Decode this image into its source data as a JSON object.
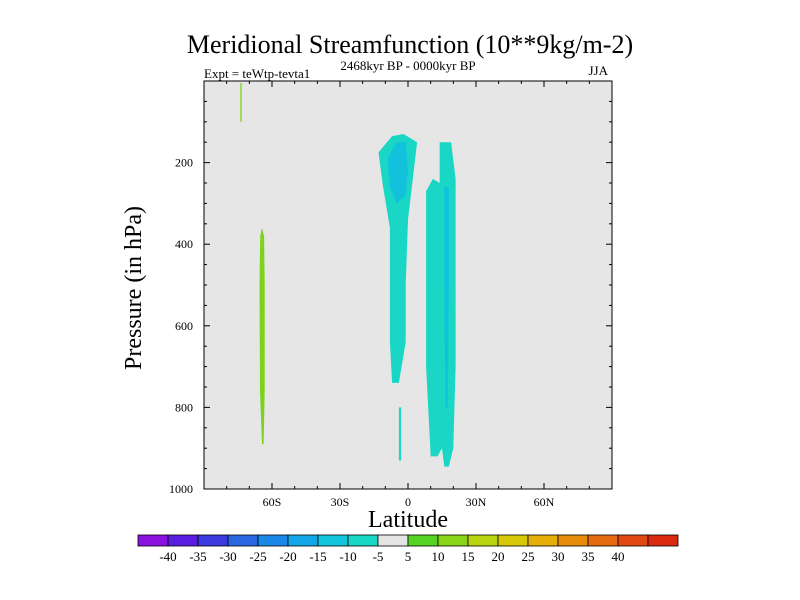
{
  "chart_data": {
    "type": "filled-contour",
    "title": "Meridional Streamfunction (10**9kg/m-2)",
    "subtitle_left": "Expt = teWtp-tevta1",
    "subtitle_center": "2468kyr BP - 0000kyr BP",
    "subtitle_right": "JJA",
    "xlabel": "Latitude",
    "ylabel": "Pressure (in hPa)",
    "xlim": [
      -90,
      90
    ],
    "ylim": [
      1000,
      0
    ],
    "x_ticks": [
      {
        "value": -60,
        "label": "60S"
      },
      {
        "value": -30,
        "label": "30S"
      },
      {
        "value": 0,
        "label": "0"
      },
      {
        "value": 30,
        "label": "30N"
      },
      {
        "value": 60,
        "label": "60N"
      }
    ],
    "y_ticks": [
      {
        "value": 200,
        "label": "200"
      },
      {
        "value": 400,
        "label": "400"
      },
      {
        "value": 600,
        "label": "600"
      },
      {
        "value": 800,
        "label": "800"
      },
      {
        "value": 1000,
        "label": "1000"
      }
    ],
    "colorbar": {
      "labels": [
        "-40",
        "-35",
        "-30",
        "-25",
        "-20",
        "-15",
        "-10",
        "-5",
        "5",
        "10",
        "15",
        "20",
        "25",
        "30",
        "35",
        "40"
      ],
      "colors": [
        "#8a12e0",
        "#5a1ee0",
        "#3a3ae0",
        "#2a66e0",
        "#1a88e6",
        "#10a6e8",
        "#12c4dc",
        "#18d6c4",
        "#e4e4e4",
        "#55d424",
        "#8ad418",
        "#b8d410",
        "#d8c80a",
        "#e6ae08",
        "#e68c08",
        "#e66a10",
        "#e04a12",
        "#da2a10"
      ]
    },
    "regions": [
      {
        "name": "tiny-positive-top-south",
        "value": 5,
        "color": "#7cd21c",
        "outline": [
          [
            -74,
            5
          ],
          [
            -73.4,
            5
          ],
          [
            -73.4,
            100
          ],
          [
            -74,
            100
          ]
        ]
      },
      {
        "name": "positive-cell-65S",
        "value": 5,
        "color": "#7cd21c",
        "outline": [
          [
            -64.5,
            360
          ],
          [
            -63.5,
            380
          ],
          [
            -63.2,
            500
          ],
          [
            -63.2,
            760
          ],
          [
            -63.7,
            890
          ],
          [
            -64.4,
            890
          ],
          [
            -65.3,
            760
          ],
          [
            -65.5,
            500
          ],
          [
            -65.2,
            380
          ]
        ]
      },
      {
        "name": "negative-cell-equator-west",
        "value": -5,
        "color": "#1ad6c4",
        "outline": [
          [
            -13,
            175
          ],
          [
            -7,
            135
          ],
          [
            -2,
            130
          ],
          [
            4,
            150
          ],
          [
            0,
            340
          ],
          [
            -1,
            500
          ],
          [
            -1,
            640
          ],
          [
            -4,
            740
          ],
          [
            -7,
            740
          ],
          [
            -8,
            640
          ],
          [
            -8,
            500
          ],
          [
            -8,
            360
          ],
          [
            -11,
            260
          ]
        ]
      },
      {
        "name": "negative-cell-equator-west-core",
        "value": -10,
        "color": "#12c2dc",
        "outline": [
          [
            -9,
            190
          ],
          [
            -5,
            150
          ],
          [
            -1,
            150
          ],
          [
            0,
            220
          ],
          [
            -1,
            280
          ],
          [
            -5,
            300
          ],
          [
            -8,
            260
          ]
        ]
      },
      {
        "name": "negative-fragment-low",
        "value": -5,
        "color": "#1ad6c4",
        "outline": [
          [
            -4,
            800
          ],
          [
            -3,
            800
          ],
          [
            -3,
            930
          ],
          [
            -4,
            930
          ]
        ]
      },
      {
        "name": "negative-cell-15N",
        "value": -5,
        "color": "#1ad6c4",
        "outline": [
          [
            14,
            150
          ],
          [
            19,
            150
          ],
          [
            21,
            240
          ],
          [
            21,
            500
          ],
          [
            21,
            700
          ],
          [
            20,
            900
          ],
          [
            18,
            945
          ],
          [
            16,
            945
          ],
          [
            15,
            900
          ],
          [
            13,
            920
          ],
          [
            10,
            920
          ],
          [
            8,
            700
          ],
          [
            8,
            500
          ],
          [
            8,
            270
          ],
          [
            11,
            240
          ],
          [
            14,
            250
          ]
        ]
      },
      {
        "name": "negative-cell-15N-core",
        "value": -10,
        "color": "#12c2dc",
        "outline": [
          [
            16,
            260
          ],
          [
            18,
            260
          ],
          [
            18,
            500
          ],
          [
            17.5,
            800
          ],
          [
            16.5,
            800
          ],
          [
            16,
            500
          ]
        ]
      }
    ]
  }
}
